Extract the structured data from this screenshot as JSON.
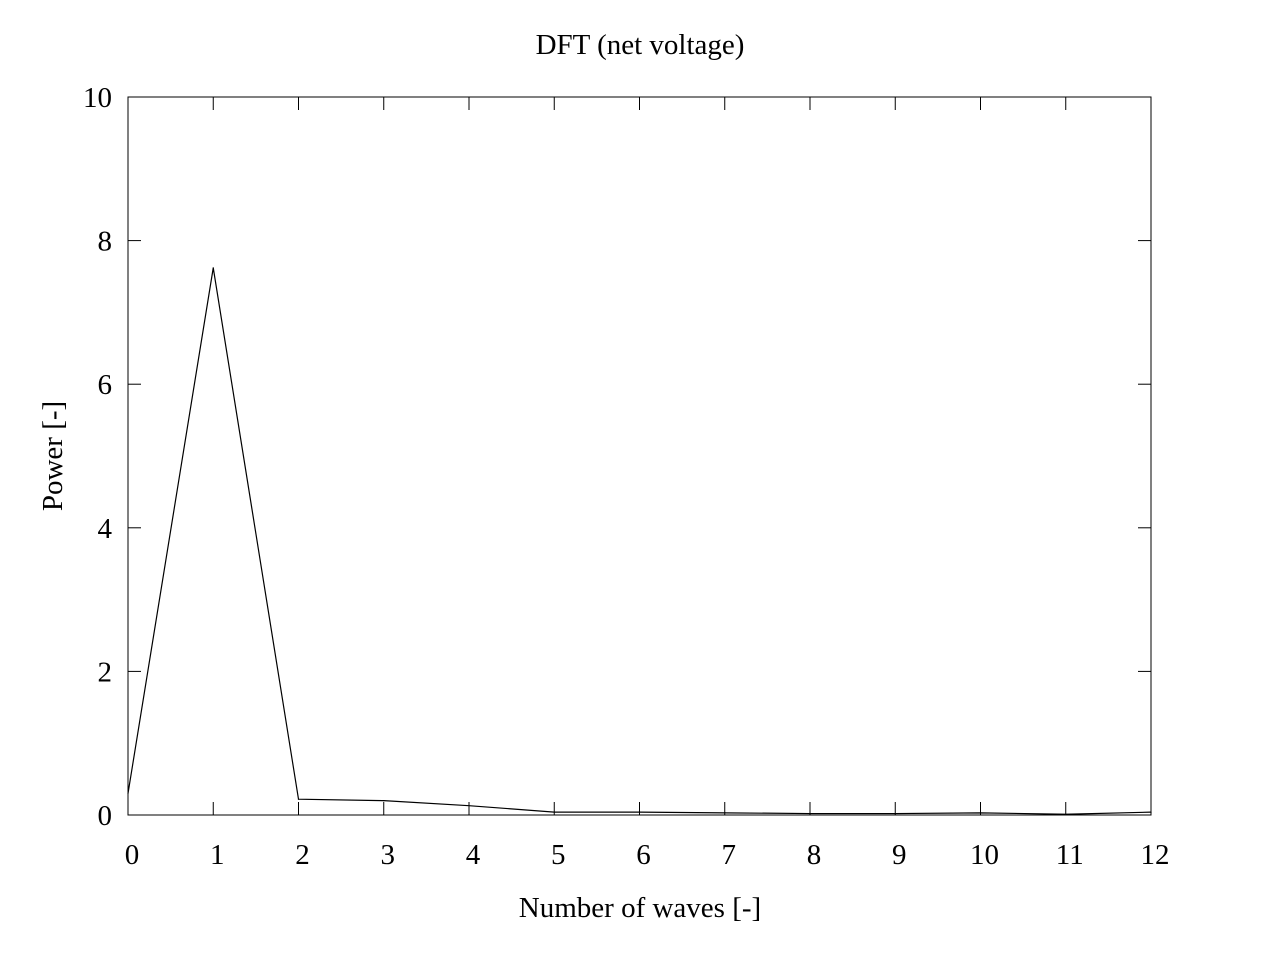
{
  "chart_data": {
    "type": "line",
    "title": "DFT (net voltage)",
    "xlabel": "Number of waves [-]",
    "ylabel": "Power [-]",
    "xlim": [
      0,
      12
    ],
    "ylim": [
      0,
      10
    ],
    "xticks": [
      0,
      1,
      2,
      3,
      4,
      5,
      6,
      7,
      8,
      9,
      10,
      11,
      12
    ],
    "yticks": [
      0,
      2,
      4,
      6,
      8,
      10
    ],
    "grid": false,
    "legend": "none",
    "line_color": "#000000",
    "series": [
      {
        "x": [
          0,
          1,
          2,
          3,
          4,
          5,
          6,
          7,
          8,
          9,
          10,
          11,
          12
        ],
        "values": [
          0.3,
          7.62,
          0.22,
          0.2,
          0.13,
          0.04,
          0.04,
          0.03,
          0.02,
          0.02,
          0.03,
          0.01,
          0.04
        ]
      }
    ]
  }
}
